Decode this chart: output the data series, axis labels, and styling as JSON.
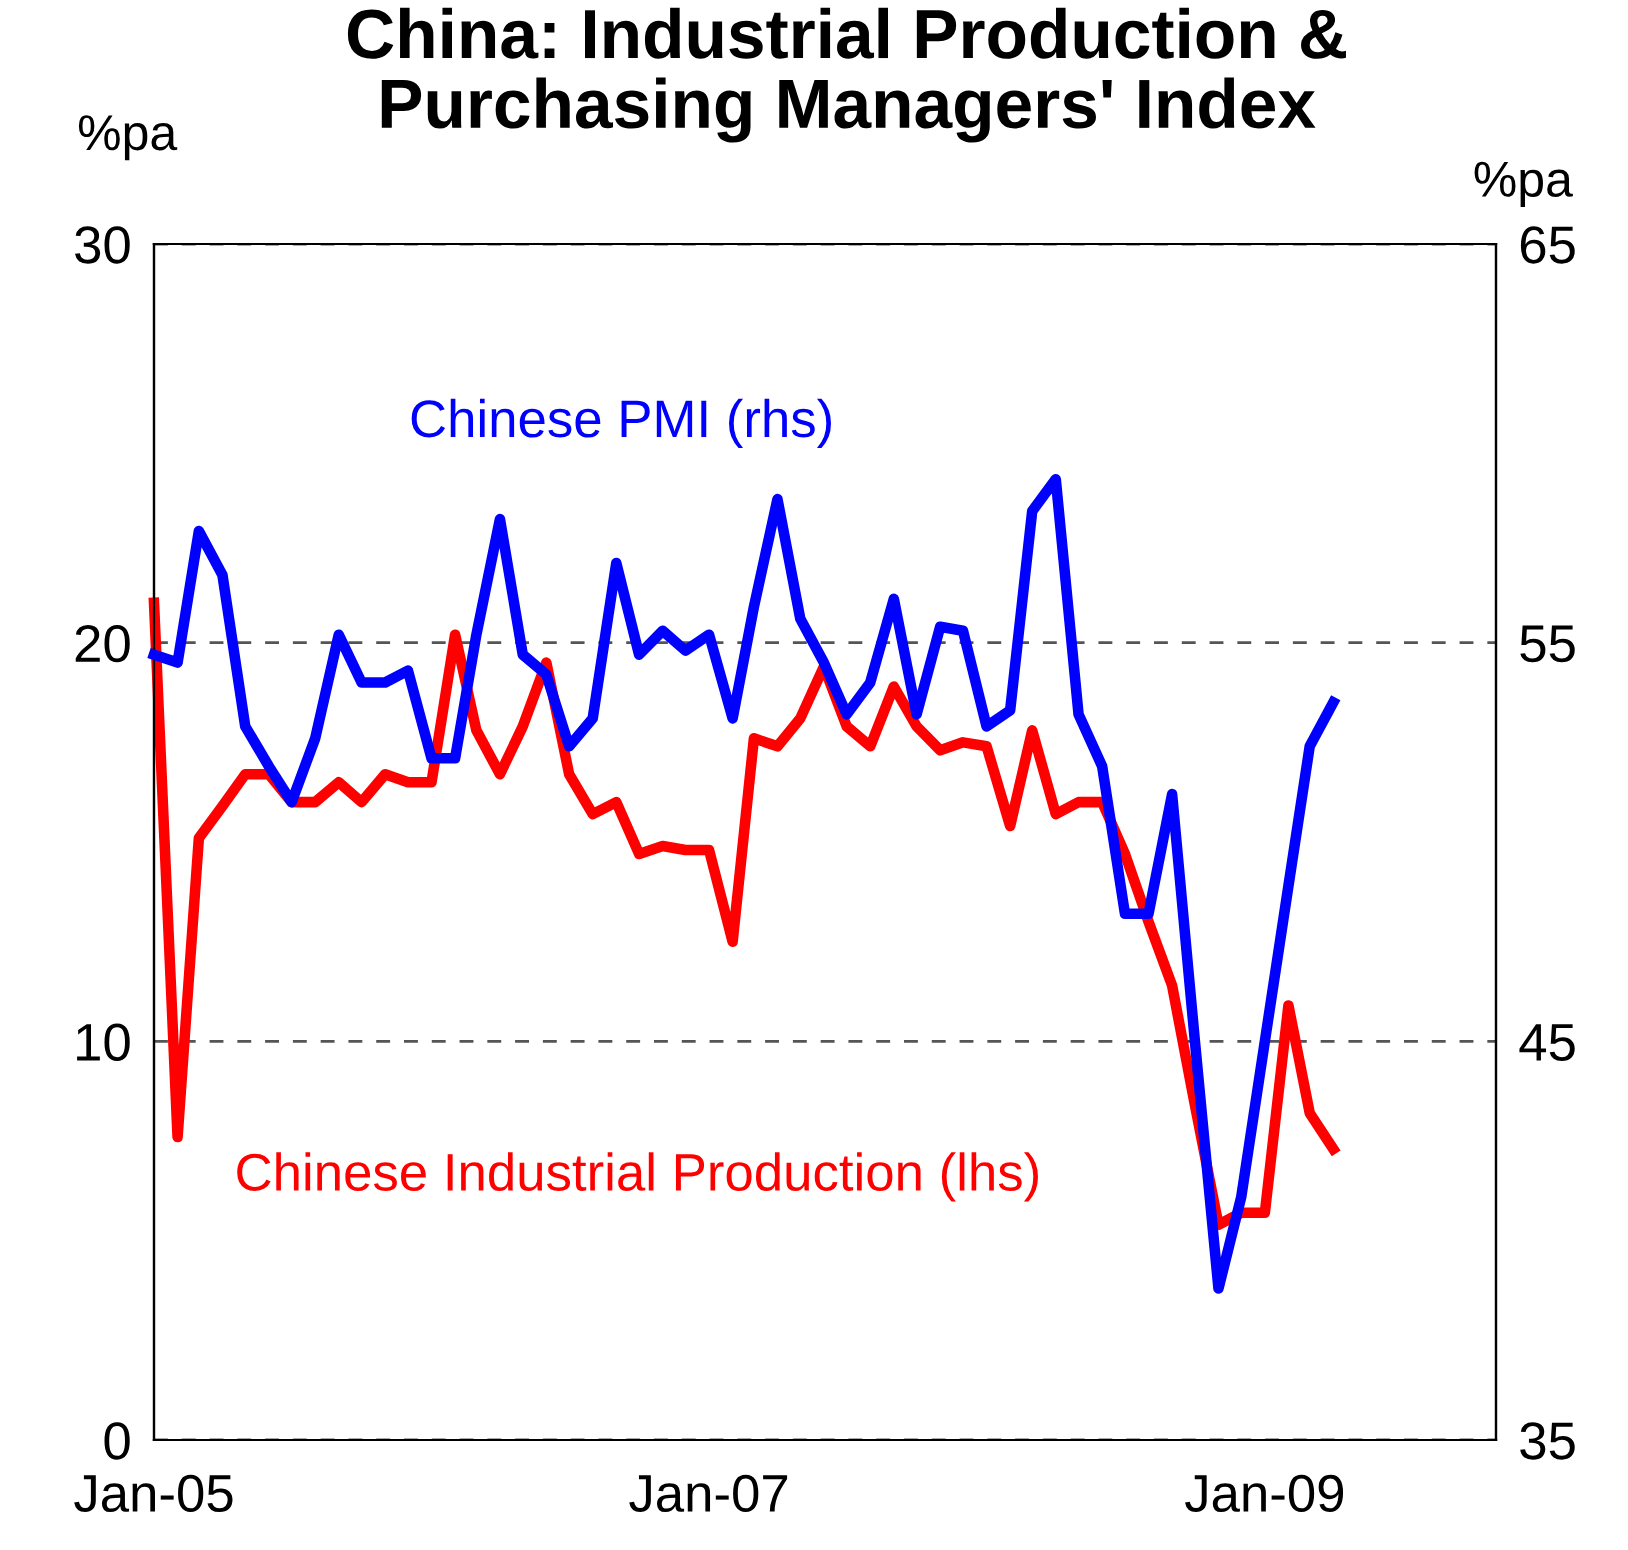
{
  "chart_data": {
    "type": "line",
    "title": "China: Industrial Production &\nPurchasing Managers' Index",
    "ylabel": "%pa",
    "y2label": "%pa",
    "x": [
      "2005-01",
      "2005-02",
      "2005-03",
      "2005-04",
      "2005-05",
      "2005-06",
      "2005-07",
      "2005-08",
      "2005-09",
      "2005-10",
      "2005-11",
      "2005-12",
      "2006-01",
      "2006-02",
      "2006-03",
      "2006-04",
      "2006-05",
      "2006-06",
      "2006-07",
      "2006-08",
      "2006-09",
      "2006-10",
      "2006-11",
      "2006-12",
      "2007-01",
      "2007-02",
      "2007-03",
      "2007-04",
      "2007-05",
      "2007-06",
      "2007-07",
      "2007-08",
      "2007-09",
      "2007-10",
      "2007-11",
      "2007-12",
      "2008-01",
      "2008-02",
      "2008-03",
      "2008-04",
      "2008-05",
      "2008-06",
      "2008-07",
      "2008-08",
      "2008-09",
      "2008-10",
      "2008-11",
      "2008-12",
      "2009-01",
      "2009-02",
      "2009-03",
      "2009-04"
    ],
    "series": [
      {
        "name": "Chinese Industrial Production (lhs)",
        "color": "#ff0000",
        "values": [
          21.0,
          7.6,
          15.1,
          15.9,
          16.7,
          16.7,
          16.0,
          16.0,
          16.5,
          16.0,
          16.7,
          16.5,
          16.5,
          20.2,
          17.8,
          16.7,
          17.9,
          19.5,
          16.7,
          15.7,
          16.0,
          14.7,
          14.9,
          14.8,
          14.8,
          12.5,
          17.6,
          17.4,
          18.1,
          19.4,
          17.9,
          17.4,
          18.9,
          17.9,
          17.3,
          17.5,
          17.4,
          15.4,
          17.8,
          15.7,
          16.0,
          16.0,
          14.7,
          13.0,
          11.4,
          8.4,
          5.4,
          5.7,
          5.7,
          10.9,
          8.2,
          7.3
        ]
      },
      {
        "name": "Chinese PMI (rhs)",
        "color": "#0000ff",
        "axis": "y2",
        "values": [
          54.7,
          54.5,
          57.8,
          56.7,
          52.9,
          51.9,
          51.0,
          52.6,
          55.2,
          54.0,
          54.0,
          54.3,
          52.1,
          52.1,
          55.2,
          58.1,
          54.7,
          54.2,
          52.4,
          53.1,
          57.0,
          54.7,
          55.3,
          54.8,
          55.2,
          53.1,
          55.9,
          58.6,
          55.6,
          54.5,
          53.2,
          54.0,
          56.1,
          53.2,
          55.4,
          55.3,
          52.9,
          53.3,
          58.3,
          59.1,
          53.2,
          51.9,
          48.2,
          48.2,
          51.2,
          45.0,
          38.8,
          41.1,
          45.0,
          48.9,
          52.4,
          53.5
        ]
      }
    ],
    "xlim": [
      "2005-01",
      "2009-11"
    ],
    "xticks": [
      {
        "value": "2005-01",
        "label": "Jan-05"
      },
      {
        "value": "2007-01",
        "label": "Jan-07"
      },
      {
        "value": "2009-01",
        "label": "Jan-09"
      }
    ],
    "ylim": [
      0,
      30
    ],
    "yticks": [
      0,
      10,
      20,
      30
    ],
    "y2lim": [
      35,
      65
    ],
    "y2ticks": [
      35,
      45,
      55,
      65
    ],
    "grid": "y",
    "line_style": "solid",
    "marker": "none",
    "legend": false
  }
}
